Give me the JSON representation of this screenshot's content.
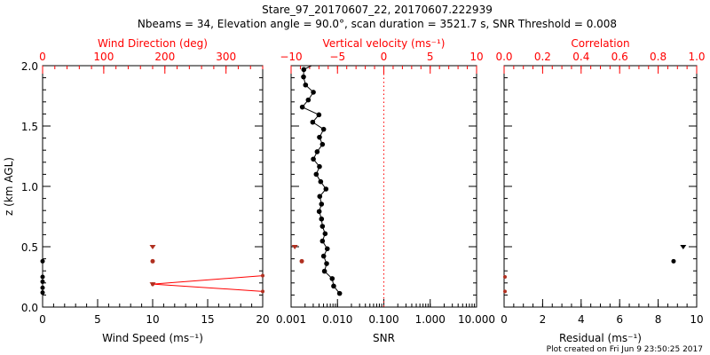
{
  "title": "Stare_97_20170607_22, 20170607.222939",
  "subtitle": "Nbeams = 34, Elevation angle = 90.0°, scan duration = 3521.7 s, SNR Threshold = 0.008",
  "footer": "Plot created on Fri Jun  9 23:50:25 2017",
  "colors": {
    "axis": "#000000",
    "secondary": "#ff0000",
    "marker_red": "#b03020"
  },
  "chart_data": [
    {
      "type": "scatter",
      "name": "wind-panel",
      "ylabel": "z (km AGL)",
      "ylim": [
        0,
        2.0
      ],
      "yticks": [
        "0.0",
        "0.5",
        "1.0",
        "1.5",
        "2.0"
      ],
      "xlabel": "Wind Speed (ms⁻¹)",
      "xlim": [
        0,
        20
      ],
      "xticks": [
        "0",
        "5",
        "10",
        "15",
        "20"
      ],
      "x2label": "Wind Direction (deg)",
      "x2lim": [
        0,
        360
      ],
      "x2ticks": [
        "0",
        "100",
        "200",
        "300"
      ],
      "series": [
        {
          "name": "Wind speed",
          "color": "#b03020",
          "points": [
            [
              10,
              0.5,
              "tri"
            ],
            [
              10,
              0.38,
              "dot"
            ],
            [
              10,
              0.19,
              "tri"
            ]
          ]
        },
        {
          "name": "Wind speed (zero)",
          "color": "#000000",
          "points": [
            [
              0,
              0.38
            ],
            [
              0,
              0.25
            ],
            [
              0,
              0.21
            ],
            [
              0,
              0.16
            ],
            [
              0,
              0.12
            ]
          ]
        },
        {
          "name": "Wind direction",
          "color": "#ff0000",
          "axis": "x2",
          "line": [
            [
              180,
              0.19
            ],
            [
              360,
              0.26
            ]
          ],
          "line2": [
            [
              180,
              0.19
            ],
            [
              360,
              0.13
            ]
          ]
        }
      ]
    },
    {
      "type": "line",
      "name": "velocity-panel",
      "x2label": "Vertical velocity (ms⁻¹)",
      "x2lim": [
        -10,
        10
      ],
      "x2ticks": [
        "−10",
        "−5",
        "0",
        "5",
        "10"
      ],
      "xlabel": "SNR",
      "xlim": [
        0.001,
        10
      ],
      "xticks": [
        "0.001",
        "0.010",
        "0.100",
        "1.000",
        "10.000"
      ],
      "ylim": [
        0,
        2.0
      ],
      "velocity": {
        "z": [
          1.968,
          1.907,
          1.84,
          1.78,
          1.716,
          1.657,
          1.593,
          1.532,
          1.473,
          1.407,
          1.348,
          1.287,
          1.226,
          1.164,
          1.1,
          1.039,
          0.978,
          0.917,
          0.853,
          0.792,
          0.73,
          0.669,
          0.608,
          0.547,
          0.483,
          0.422,
          0.36,
          0.297,
          0.236,
          0.174,
          0.113
        ],
        "w": [
          -8.63,
          -8.66,
          -8.44,
          -7.6,
          -8.15,
          -8.79,
          -7.0,
          -7.67,
          -6.49,
          -6.94,
          -6.62,
          -7.19,
          -7.6,
          -6.94,
          -7.29,
          -6.81,
          -6.24,
          -6.91,
          -6.72,
          -6.97,
          -6.72,
          -6.62,
          -6.33,
          -6.62,
          -6.1,
          -6.49,
          -6.17,
          -6.4,
          -5.57,
          -5.41,
          -4.77
        ]
      },
      "snr": [
        [
          0.0012,
          0.5,
          "tri"
        ],
        [
          0.0017,
          0.38,
          "dot"
        ]
      ],
      "reference_line": {
        "axis": "x2",
        "value": 0,
        "style": "dotted"
      }
    },
    {
      "type": "scatter",
      "name": "correlation-panel",
      "x2label": "Correlation",
      "x2lim": [
        0,
        1.0
      ],
      "x2ticks": [
        "0.0",
        "0.2",
        "0.4",
        "0.6",
        "0.8",
        "1.0"
      ],
      "xlabel": "Residual (ms⁻¹)",
      "xlim": [
        0,
        10
      ],
      "xticks": [
        "0",
        "2",
        "4",
        "6",
        "8",
        "10"
      ],
      "ylim": [
        0,
        2.0
      ],
      "residual": [
        [
          9.3,
          0.5,
          "tri"
        ],
        [
          8.8,
          0.38,
          "dot"
        ]
      ],
      "correlation": [
        [
          0,
          0.25
        ],
        [
          0,
          0.13
        ]
      ]
    }
  ]
}
